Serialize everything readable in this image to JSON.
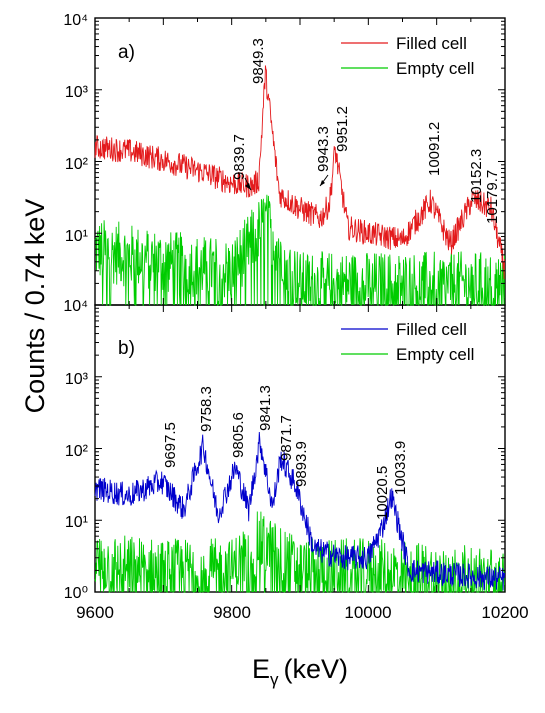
{
  "chart_data": [
    {
      "panel_label": "a)",
      "type": "line",
      "yscale": "log",
      "xlim": [
        9600,
        10200
      ],
      "ylim": [
        1,
        10000
      ],
      "y_tick_labels": [
        "10⁴",
        "10³",
        "10²",
        "10¹"
      ],
      "grid": false,
      "legend_position": "top-right",
      "series": [
        {
          "name": "Filled cell",
          "color": "#e31a1c",
          "peaks": [
            [
              9600,
              160
            ],
            [
              9650,
              140
            ],
            [
              9700,
              105
            ],
            [
              9760,
              70
            ],
            [
              9800,
              50
            ],
            [
              9830,
              45
            ],
            [
              9839.7,
              55
            ],
            [
              9849.3,
              1750
            ],
            [
              9870,
              35
            ],
            [
              9900,
              22
            ],
            [
              9930,
              16
            ],
            [
              9943.3,
              26
            ],
            [
              9951.2,
              150
            ],
            [
              9970,
              12
            ],
            [
              10000,
              10
            ],
            [
              10050,
              8
            ],
            [
              10091.2,
              28
            ],
            [
              10120,
              7
            ],
            [
              10152.3,
              30
            ],
            [
              10179.7,
              22
            ],
            [
              10200,
              3
            ]
          ]
        },
        {
          "name": "Empty cell",
          "color": "#00cc00",
          "peaks": [
            [
              9600,
              6
            ],
            [
              9700,
              4
            ],
            [
              9800,
              3
            ],
            [
              9849.3,
              15
            ],
            [
              9900,
              2
            ],
            [
              10000,
              2
            ],
            [
              10100,
              2
            ],
            [
              10200,
              2
            ]
          ]
        }
      ],
      "annotations": [
        "9849.3",
        "9839.7",
        "9943.3",
        "9951.2",
        "10091.2",
        "10152.3",
        "10179.7"
      ]
    },
    {
      "panel_label": "b)",
      "type": "line",
      "yscale": "log",
      "xlim": [
        9600,
        10200
      ],
      "ylim": [
        1,
        10000
      ],
      "y_tick_labels": [
        "10⁴",
        "10³",
        "10²",
        "10¹",
        "10⁰"
      ],
      "grid": false,
      "legend_position": "top-right",
      "series": [
        {
          "name": "Filled cell",
          "color": "#0000cc",
          "peaks": [
            [
              9600,
              28
            ],
            [
              9650,
              22
            ],
            [
              9697.5,
              35
            ],
            [
              9730,
              14
            ],
            [
              9758.3,
              110
            ],
            [
              9780,
              12
            ],
            [
              9805.6,
              55
            ],
            [
              9825,
              14
            ],
            [
              9841.3,
              130
            ],
            [
              9860,
              15
            ],
            [
              9871.7,
              75
            ],
            [
              9893.9,
              30
            ],
            [
              9920,
              4
            ],
            [
              9960,
              3
            ],
            [
              10000,
              3
            ],
            [
              10020.5,
              8
            ],
            [
              10033.9,
              22
            ],
            [
              10060,
              2
            ],
            [
              10200,
              1.5
            ]
          ]
        },
        {
          "name": "Empty cell",
          "color": "#00cc00",
          "peaks": [
            [
              9600,
              2.5
            ],
            [
              9700,
              2
            ],
            [
              9800,
              2
            ],
            [
              9840,
              5
            ],
            [
              9900,
              2
            ],
            [
              10000,
              2
            ],
            [
              10200,
              1.5
            ]
          ]
        }
      ],
      "annotations": [
        "9697.5",
        "9758.3",
        "9805.6",
        "9841.3",
        "9871.7",
        "9893.9",
        "10020.5",
        "10033.9"
      ]
    }
  ],
  "x_tick_labels": [
    "9600",
    "9800",
    "10000",
    "10200"
  ],
  "ylabel": "Counts / 0.74 keV",
  "xlabel_main": "E",
  "xlabel_sub": "γ",
  "xlabel_unit": "(keV)"
}
